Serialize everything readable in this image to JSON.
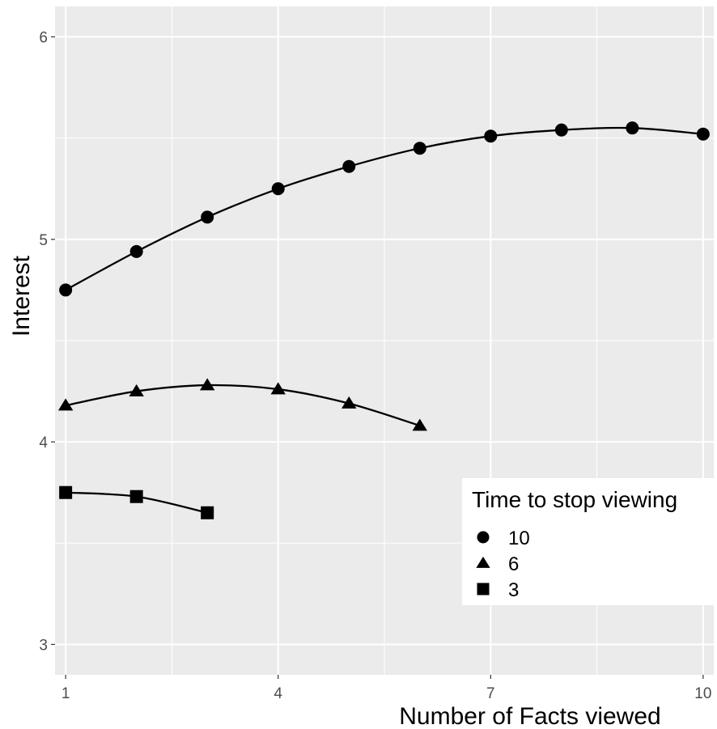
{
  "chart_data": {
    "type": "line",
    "xlabel": "Number of Facts viewed",
    "ylabel": "Interest",
    "xlim": [
      0.85,
      10.15
    ],
    "ylim": [
      2.85,
      6.15
    ],
    "x_ticks": [
      1,
      4,
      7,
      10
    ],
    "y_ticks": [
      3,
      4,
      5,
      6
    ],
    "grid": true,
    "background": "#ebebeb",
    "line_color": "#000000",
    "legend": {
      "title": "Time to stop viewing",
      "position": "bottom-right"
    },
    "series": [
      {
        "name": "10",
        "marker": "circle",
        "x": [
          1,
          2,
          3,
          4,
          5,
          6,
          7,
          8,
          9,
          10
        ],
        "values": [
          4.75,
          4.94,
          5.11,
          5.25,
          5.36,
          5.45,
          5.51,
          5.54,
          5.55,
          5.52
        ]
      },
      {
        "name": "6",
        "marker": "triangle",
        "x": [
          1,
          2,
          3,
          4,
          5,
          6
        ],
        "values": [
          4.18,
          4.25,
          4.28,
          4.26,
          4.19,
          4.08
        ]
      },
      {
        "name": "3",
        "marker": "square",
        "x": [
          1,
          2,
          3
        ],
        "values": [
          3.75,
          3.73,
          3.65
        ]
      }
    ]
  }
}
